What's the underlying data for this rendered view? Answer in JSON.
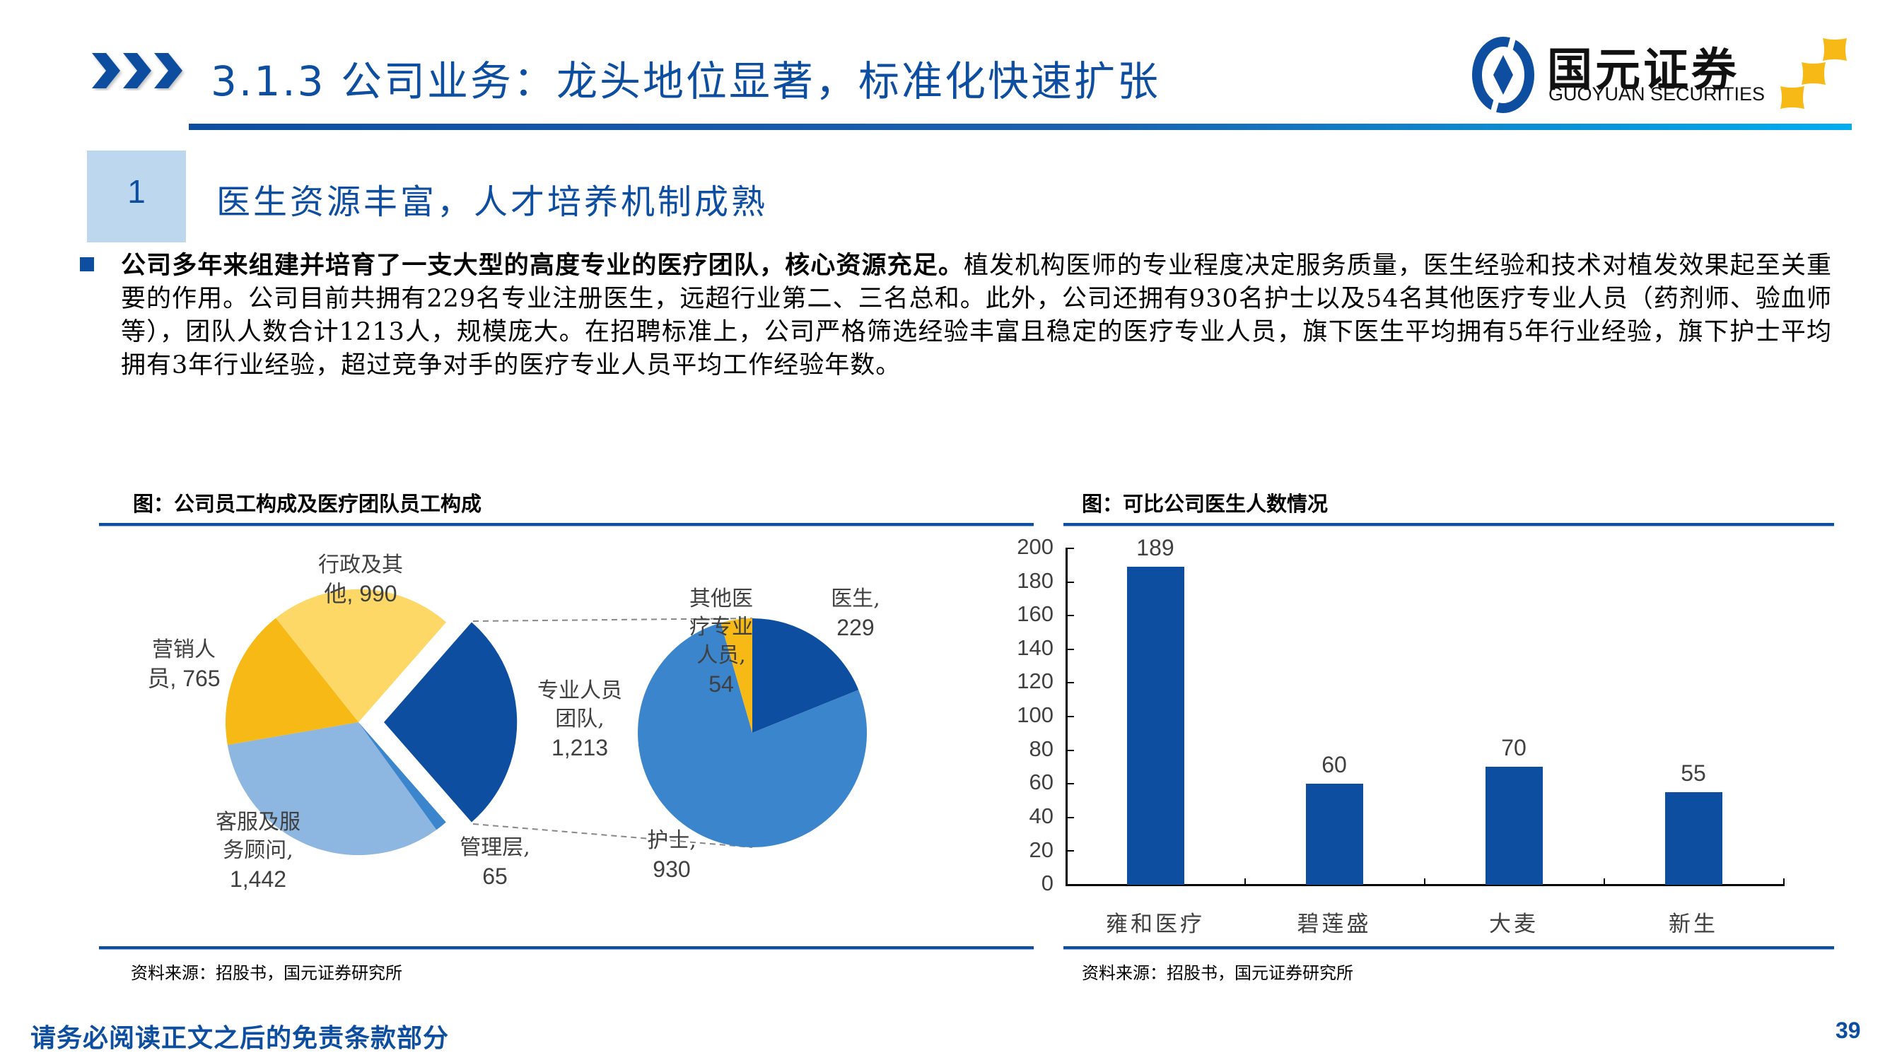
{
  "header": {
    "title": "3.1.3 公司业务：龙头地位显著，标准化快速扩张",
    "logo_cn": "国元证券",
    "logo_en": "GUOYUAN SECURITIES"
  },
  "section": {
    "number": "1",
    "title": "医生资源丰富，人才培养机制成熟"
  },
  "body": {
    "lead_bold": "公司多年来组建并培育了一支大型的高度专业的医疗团队，核心资源充足。",
    "text": "植发机构医师的专业程度决定服务质量，医生经验和技术对植发效果起至关重要的作用。公司目前共拥有229名专业注册医生，远超行业第二、三名总和。此外，公司还拥有930名护士以及54名其他医疗专业人员（药剂师、验血师等），团队人数合计1213人，规模庞大。在招聘标准上，公司严格筛选经验丰富且稳定的医疗专业人员，旗下医生平均拥有5年行业经验，旗下护士平均拥有3年行业经验，超过竞争对手的医疗专业人员平均工作经验年数。"
  },
  "left_chart": {
    "title": "图：公司员工构成及医疗团队员工构成",
    "source": "资料来源：招股书，国元证券研究所",
    "labels": {
      "admin": [
        "行政及其",
        "他, 990"
      ],
      "sales": [
        "营销人",
        "员, 765"
      ],
      "service": [
        "客服及服",
        "务顾问,",
        "1,442"
      ],
      "mgmt": [
        "管理层,",
        "65"
      ],
      "pro": [
        "专业人员",
        "团队,",
        "1,213"
      ],
      "doctor": [
        "医生,",
        "229"
      ],
      "nurse": [
        "护士,",
        "930"
      ],
      "other": [
        "其他医",
        "疗专业",
        "人员,",
        "54"
      ]
    }
  },
  "right_chart": {
    "title": "图：可比公司医生人数情况",
    "source": "资料来源：招股书，国元证券研究所",
    "yticks": [
      "200",
      "180",
      "160",
      "140",
      "120",
      "100",
      "80",
      "60",
      "40",
      "20",
      "0"
    ],
    "bars": [
      {
        "label": "雍和医疗",
        "value": "189"
      },
      {
        "label": "碧莲盛",
        "value": "60"
      },
      {
        "label": "大麦",
        "value": "70"
      },
      {
        "label": "新生",
        "value": "55"
      }
    ]
  },
  "footer": {
    "disclaimer": "请务必阅读正文之后的免责条款部分",
    "page": "39"
  },
  "colors": {
    "brand_blue": "#0d4ea0",
    "box_blue": "#bdd7ee",
    "pie_pro": "#0d4ea0",
    "pie_admin": "#fdd867",
    "pie_sales": "#f6b915",
    "pie_service": "#8db6e0",
    "pie_mgmt": "#3a85cc",
    "pie_doctor": "#0d4ea0",
    "pie_nurse": "#3a85cc",
    "pie_other": "#f6b915",
    "logo_gold": "#f6b915"
  },
  "chart_data": [
    {
      "type": "pie",
      "title": "公司员工构成",
      "categories": [
        "专业人员团队",
        "行政及其他",
        "营销人员",
        "客服及服务顾问",
        "管理层"
      ],
      "values": [
        1213,
        990,
        765,
        1442,
        65
      ],
      "exploded": "专业人员团队"
    },
    {
      "type": "pie",
      "title": "医疗团队员工构成",
      "categories": [
        "医生",
        "护士",
        "其他医疗专业人员"
      ],
      "values": [
        229,
        930,
        54
      ]
    },
    {
      "type": "bar",
      "title": "图：可比公司医生人数情况",
      "categories": [
        "雍和医疗",
        "碧莲盛",
        "大麦",
        "新生"
      ],
      "values": [
        189,
        60,
        70,
        55
      ],
      "xlabel": "",
      "ylabel": "",
      "ylim": [
        0,
        200
      ],
      "yticks": [
        0,
        20,
        40,
        60,
        80,
        100,
        120,
        140,
        160,
        180,
        200
      ],
      "grid": false,
      "data_labels": true
    }
  ]
}
